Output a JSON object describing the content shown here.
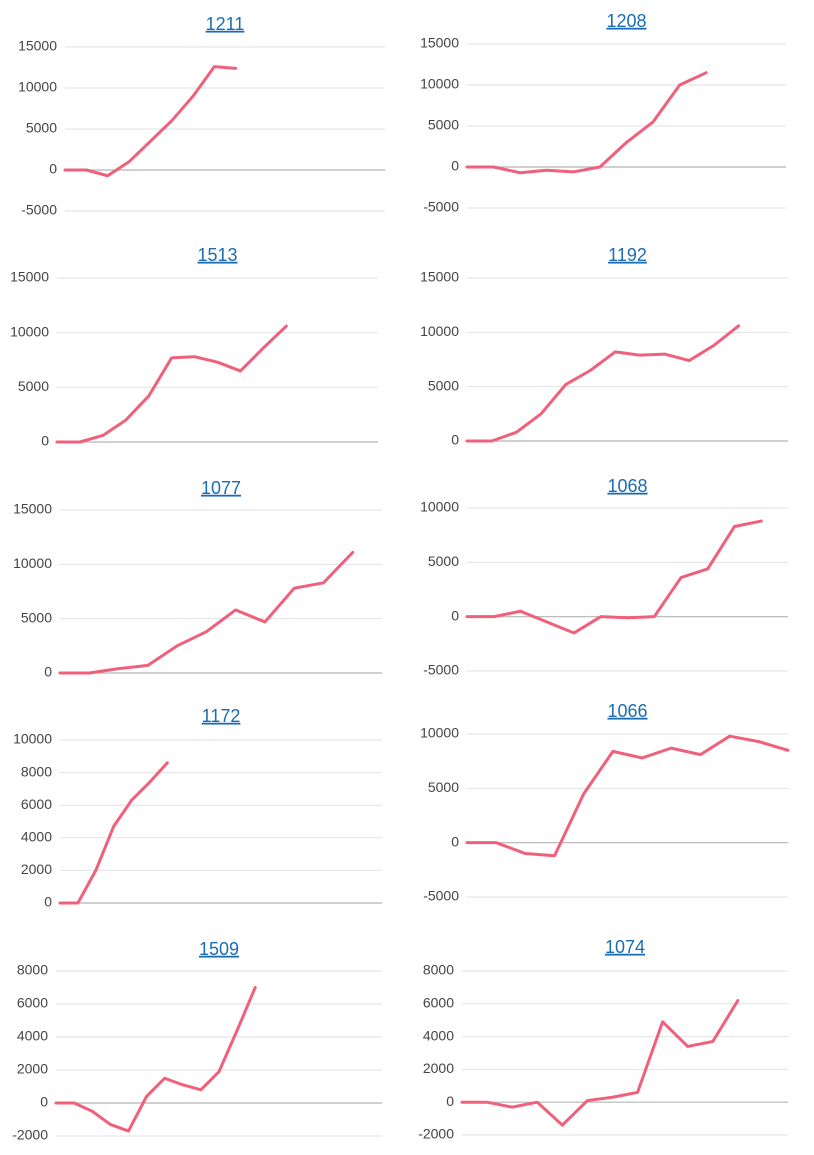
{
  "chart_data": [
    {
      "type": "line",
      "title": "1211",
      "color": "#f0607a",
      "values": [
        0,
        0,
        -700,
        1000,
        3500,
        6000,
        9000,
        12600,
        12400
      ],
      "ylim": [
        -5000,
        15000
      ],
      "yticks": [
        -5000,
        0,
        5000,
        10000,
        15000
      ],
      "grid": true
    },
    {
      "type": "line",
      "title": "1208",
      "color": "#f0607a",
      "values": [
        0,
        0,
        -700,
        -400,
        -600,
        0,
        3000,
        5500,
        10000,
        11500
      ],
      "ylim": [
        -5000,
        15000
      ],
      "yticks": [
        -5000,
        0,
        5000,
        10000,
        15000
      ],
      "grid": true
    },
    {
      "type": "line",
      "title": "1513",
      "color": "#f0607a",
      "values": [
        0,
        0,
        600,
        2000,
        4200,
        7700,
        7800,
        7300,
        6500,
        8600,
        10600
      ],
      "ylim": [
        0,
        15000
      ],
      "yticks": [
        0,
        5000,
        10000,
        15000
      ],
      "grid": true
    },
    {
      "type": "line",
      "title": "1192",
      "color": "#f0607a",
      "values": [
        0,
        0,
        800,
        2500,
        5200,
        6500,
        8200,
        7900,
        8000,
        7400,
        8800,
        10600
      ],
      "ylim": [
        0,
        15000
      ],
      "yticks": [
        0,
        5000,
        10000,
        15000
      ],
      "grid": true
    },
    {
      "type": "line",
      "title": "1077",
      "color": "#f0607a",
      "values": [
        0,
        0,
        400,
        700,
        2500,
        3800,
        5800,
        4700,
        7800,
        8300,
        11100
      ],
      "ylim": [
        0,
        15000
      ],
      "yticks": [
        0,
        5000,
        10000,
        15000
      ],
      "grid": true
    },
    {
      "type": "line",
      "title": "1068",
      "color": "#f0607a",
      "values": [
        0,
        0,
        500,
        -500,
        -1500,
        0,
        -100,
        0,
        3600,
        4400,
        8300,
        8800
      ],
      "ylim": [
        -5000,
        10000
      ],
      "yticks": [
        -5000,
        0,
        5000,
        10000
      ],
      "grid": true
    },
    {
      "type": "line",
      "title": "1172",
      "color": "#f0607a",
      "values": [
        0,
        0,
        2000,
        4700,
        6300,
        7400,
        8600
      ],
      "ylim": [
        0,
        10000
      ],
      "yticks": [
        0,
        2000,
        4000,
        6000,
        8000,
        10000
      ],
      "grid": true
    },
    {
      "type": "line",
      "title": "1066",
      "color": "#f0607a",
      "values": [
        0,
        0,
        -1000,
        -1200,
        4500,
        8400,
        7800,
        8700,
        8100,
        9800,
        9300,
        8500
      ],
      "ylim": [
        -5000,
        10000
      ],
      "yticks": [
        -5000,
        0,
        5000,
        10000
      ],
      "grid": true
    },
    {
      "type": "line",
      "title": "1509",
      "color": "#f0607a",
      "values": [
        0,
        0,
        -500,
        -1300,
        -1700,
        400,
        1500,
        1100,
        800,
        1900,
        4400,
        7000
      ],
      "ylim": [
        -2000,
        8000
      ],
      "yticks": [
        -2000,
        0,
        2000,
        4000,
        6000,
        8000
      ],
      "grid": true
    },
    {
      "type": "line",
      "title": "1074",
      "color": "#f0607a",
      "values": [
        0,
        0,
        -300,
        0,
        -1400,
        100,
        300,
        600,
        4900,
        3400,
        3700,
        6200
      ],
      "ylim": [
        -2000,
        8000
      ],
      "yticks": [
        -2000,
        0,
        2000,
        4000,
        6000,
        8000
      ],
      "grid": true
    }
  ]
}
